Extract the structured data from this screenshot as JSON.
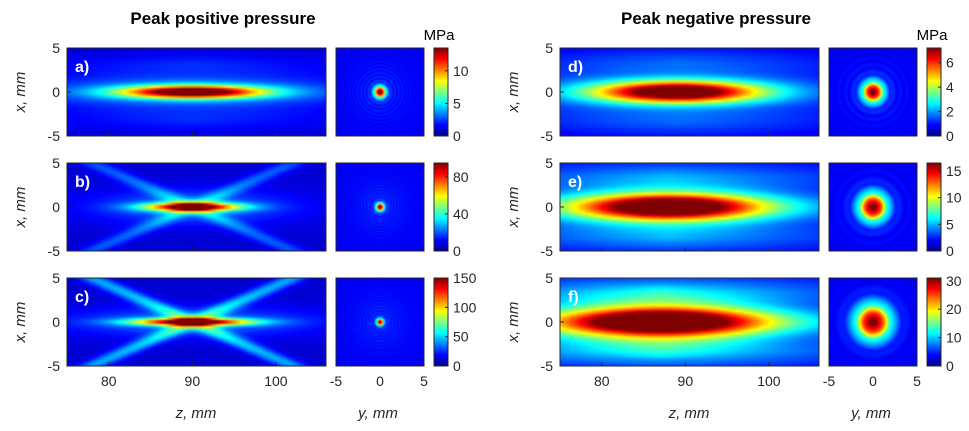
{
  "chart_data": {
    "type": "heatmap",
    "colormap": "jet",
    "titles": [
      "Peak positive pressure",
      "Peak negative pressure"
    ],
    "unit_label": "MPa",
    "z_label": "z, mm",
    "y_label": "y, mm",
    "x_label": "x, mm",
    "z_range": [
      75,
      106
    ],
    "z_ticks": [
      "80",
      "90",
      "100"
    ],
    "y_range": [
      -5,
      5
    ],
    "y_ticks": [
      "-5",
      "0",
      "5"
    ],
    "x_range": [
      -5,
      5
    ],
    "x_ticks": [
      "5",
      "0",
      "-5"
    ],
    "panels": [
      {
        "label": "a)",
        "group": "positive",
        "max": 13.5,
        "ticks": [
          "10",
          "5",
          "0"
        ],
        "tick_values": [
          10,
          5,
          0
        ],
        "focus_z": 90,
        "length_mm": 6,
        "width_mm": 0.5,
        "sidelobes": "weak"
      },
      {
        "label": "b)",
        "group": "positive",
        "max": 95,
        "ticks": [
          "80",
          "40",
          "0"
        ],
        "tick_values": [
          80,
          40,
          0
        ],
        "focus_z": 90,
        "length_mm": 4,
        "width_mm": 0.35,
        "sidelobes": "x-shaped"
      },
      {
        "label": "c)",
        "group": "positive",
        "max": 150,
        "ticks": [
          "150",
          "100",
          "50",
          "0"
        ],
        "tick_values": [
          150,
          100,
          50,
          0
        ],
        "focus_z": 90,
        "length_mm": 5,
        "width_mm": 0.3,
        "sidelobes": "strong x-shaped"
      },
      {
        "label": "d)",
        "group": "negative",
        "max": 7.2,
        "ticks": [
          "6",
          "4",
          "2",
          "0"
        ],
        "tick_values": [
          6,
          4,
          2,
          0
        ],
        "focus_z": 89,
        "length_mm": 7,
        "width_mm": 0.9,
        "sidelobes": "weak"
      },
      {
        "label": "e)",
        "group": "negative",
        "max": 16.5,
        "ticks": [
          "15",
          "10",
          "5",
          "0"
        ],
        "tick_values": [
          15,
          10,
          5,
          0
        ],
        "focus_z": 88,
        "length_mm": 8,
        "width_mm": 1.2,
        "sidelobes": "moderate"
      },
      {
        "label": "f)",
        "group": "negative",
        "max": 31,
        "ticks": [
          "30",
          "20",
          "10",
          "0"
        ],
        "tick_values": [
          30,
          20,
          10,
          0
        ],
        "focus_z": 87,
        "length_mm": 9,
        "width_mm": 1.5,
        "sidelobes": "strong"
      }
    ]
  }
}
